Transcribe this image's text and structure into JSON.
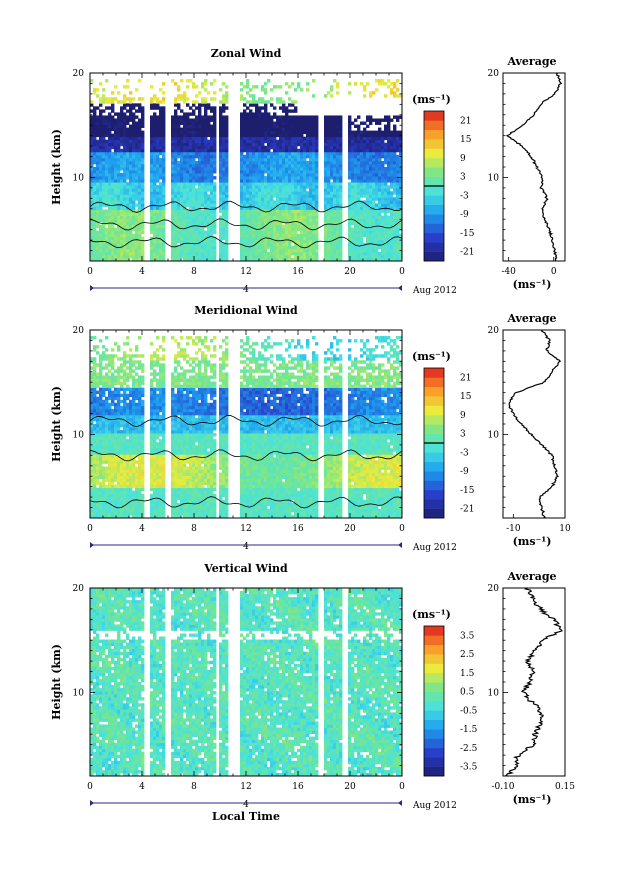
{
  "figure": {
    "x_axis_title": "Local Time",
    "x_axis_ticks": [
      "0",
      "4",
      "8",
      "12",
      "16",
      "20",
      "0"
    ],
    "date_marker": "4",
    "date_label": "Aug 2012",
    "y_axis_title": "Height (km)",
    "y_axis_ticks": [
      "20",
      "10"
    ],
    "unit_label": "(ms⁻¹)"
  },
  "chart_data": [
    {
      "type": "heatmap",
      "title": "Zonal Wind",
      "ylim": [
        2,
        20
      ],
      "colorbar_ticks": [
        "21",
        "15",
        "9",
        "3",
        "-3",
        "-9",
        "-15",
        "-21"
      ],
      "colorbar_range": [
        -24,
        24
      ],
      "gap_columns_hours": [
        [
          4.2,
          4.6
        ],
        [
          5.7,
          6.3
        ],
        [
          9.6,
          10.0
        ],
        [
          10.6,
          11.5
        ],
        [
          17.5,
          18.0
        ],
        [
          19.4,
          19.8
        ]
      ],
      "profile": {
        "title": "Average",
        "xlabel": "(ms⁻¹)",
        "xticks": [
          "-40",
          "0"
        ],
        "xlim": [
          -45,
          10
        ],
        "heights_km": [
          2,
          3,
          4,
          5,
          6,
          7,
          8,
          9,
          10,
          11,
          12,
          13,
          14,
          15,
          16,
          17,
          18,
          19,
          20
        ],
        "values": [
          2,
          1,
          -1,
          -4,
          -8,
          -10,
          -6,
          -11,
          -10,
          -15,
          -20,
          -28,
          -41,
          -28,
          -18,
          -12,
          1,
          6,
          3
        ]
      }
    },
    {
      "type": "heatmap",
      "title": "Meridional Wind",
      "ylim": [
        2,
        20
      ],
      "colorbar_ticks": [
        "21",
        "15",
        "9",
        "3",
        "-3",
        "-9",
        "-15",
        "-21"
      ],
      "colorbar_range": [
        -24,
        24
      ],
      "gap_columns_hours": [
        [
          4.2,
          4.6
        ],
        [
          5.7,
          6.3
        ],
        [
          9.6,
          10.0
        ],
        [
          10.6,
          11.5
        ],
        [
          17.5,
          18.0
        ],
        [
          19.4,
          19.8
        ]
      ],
      "profile": {
        "title": "Average",
        "xlabel": "(ms⁻¹)",
        "xticks": [
          "-10",
          "10"
        ],
        "xlim": [
          -14,
          10
        ],
        "heights_km": [
          2,
          3,
          4,
          5,
          6,
          7,
          8,
          9,
          10,
          11,
          12,
          13,
          14,
          15,
          16,
          17,
          18,
          19,
          20
        ],
        "values": [
          2,
          1,
          0,
          5,
          7,
          6,
          5,
          1,
          -3,
          -7,
          -10,
          -12,
          -9,
          2,
          5,
          8,
          3,
          4,
          1
        ]
      }
    },
    {
      "type": "heatmap",
      "title": "Vertical Wind",
      "ylim": [
        2,
        20
      ],
      "colorbar_ticks": [
        "3.5",
        "2.5",
        "1.5",
        "0.5",
        "-0.5",
        "-1.5",
        "-2.5",
        "-3.5"
      ],
      "colorbar_range": [
        -4,
        4
      ],
      "gap_columns_hours": [
        [
          4.2,
          4.6
        ],
        [
          5.7,
          6.3
        ],
        [
          9.6,
          10.0
        ],
        [
          10.6,
          11.5
        ],
        [
          17.5,
          18.0
        ],
        [
          19.4,
          19.8
        ]
      ],
      "profile": {
        "title": "Average",
        "xlabel": "(ms⁻¹)",
        "xticks": [
          "-0.10",
          "0.15"
        ],
        "xlim": [
          -0.1,
          0.15
        ],
        "heights_km": [
          2,
          3,
          4,
          5,
          6,
          7,
          8,
          9,
          10,
          11,
          12,
          13,
          14,
          15,
          16,
          17,
          18,
          19,
          20
        ],
        "values": [
          -0.08,
          -0.05,
          -0.04,
          0.02,
          0.03,
          0.05,
          0.06,
          0.02,
          -0.02,
          0.01,
          0.02,
          0.0,
          0.03,
          0.06,
          0.14,
          0.1,
          0.05,
          0.02,
          0.0
        ]
      }
    }
  ]
}
